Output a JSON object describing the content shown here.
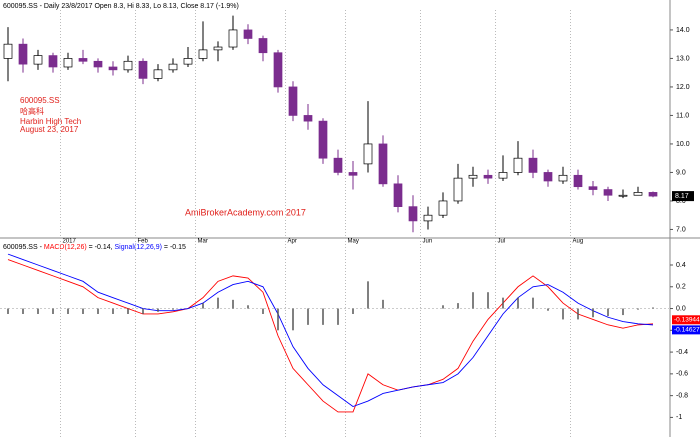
{
  "chart_data": [
    {
      "type": "candlestick",
      "title": "600095.SS - Daily 23/8/2017 Open 8.3, Hi 8.33, Lo 8.13, Close 8.17 (-1.9%)",
      "annotations": [
        "600095.SS",
        "哈高科",
        "Harbin High Tech",
        "August 23, 2017"
      ],
      "watermark": "AmiBrokerAcademy.com 2017",
      "categories": [
        null,
        null,
        null,
        null,
        "2017",
        null,
        null,
        null,
        null,
        "Feb",
        null,
        null,
        null,
        "Mar",
        null,
        null,
        null,
        null,
        null,
        "Apr",
        null,
        null,
        null,
        "May",
        null,
        null,
        null,
        null,
        "Jun",
        null,
        null,
        null,
        null,
        "Jul",
        null,
        null,
        null,
        null,
        "Aug",
        null,
        null,
        null,
        null,
        null
      ],
      "open": [
        13.0,
        13.5,
        12.8,
        13.1,
        12.7,
        13.0,
        12.9,
        12.7,
        12.6,
        12.9,
        12.3,
        12.6,
        12.8,
        13.0,
        13.3,
        13.4,
        14.0,
        13.7,
        13.2,
        12.0,
        11.0,
        10.8,
        9.5,
        9.0,
        9.3,
        10.0,
        8.6,
        7.8,
        7.3,
        7.5,
        8.0,
        8.8,
        8.9,
        8.8,
        9.0,
        9.5,
        9.0,
        8.7,
        8.9,
        8.5,
        8.4,
        8.2,
        8.2,
        8.3
      ],
      "high": [
        14.1,
        13.7,
        13.3,
        13.2,
        13.2,
        13.3,
        13.0,
        12.9,
        13.1,
        13.0,
        12.8,
        13.0,
        13.4,
        14.3,
        13.6,
        14.5,
        14.2,
        13.8,
        13.3,
        12.2,
        11.4,
        10.9,
        9.8,
        9.4,
        11.5,
        10.3,
        8.9,
        8.2,
        7.8,
        8.3,
        9.3,
        9.2,
        9.1,
        9.6,
        10.1,
        9.8,
        9.1,
        9.2,
        9.1,
        8.7,
        8.5,
        8.4,
        8.5,
        8.33
      ],
      "low": [
        12.2,
        12.5,
        12.6,
        12.5,
        12.6,
        12.8,
        12.5,
        12.4,
        12.5,
        12.1,
        12.2,
        12.5,
        12.7,
        12.9,
        12.9,
        13.3,
        13.5,
        12.9,
        11.8,
        10.8,
        10.5,
        9.3,
        8.9,
        8.4,
        9.0,
        8.5,
        7.6,
        6.9,
        7.0,
        7.4,
        7.9,
        8.5,
        8.6,
        8.7,
        8.9,
        8.8,
        8.5,
        8.6,
        8.4,
        8.2,
        8.0,
        8.1,
        8.2,
        8.13
      ],
      "close": [
        13.5,
        12.8,
        13.1,
        12.7,
        13.0,
        12.9,
        12.7,
        12.6,
        12.9,
        12.3,
        12.6,
        12.8,
        13.0,
        13.3,
        13.4,
        14.0,
        13.7,
        13.2,
        12.0,
        11.0,
        10.8,
        9.5,
        9.0,
        8.9,
        10.0,
        8.6,
        7.8,
        7.3,
        7.5,
        8.0,
        8.8,
        8.9,
        8.8,
        9.0,
        9.5,
        9.0,
        8.7,
        8.9,
        8.5,
        8.4,
        8.2,
        8.2,
        8.3,
        8.17
      ],
      "up_color": "#ffffff",
      "down_color": "#7b2d8e",
      "ylim": [
        6.7,
        15.05
      ],
      "yticks": [
        {
          "value": 7,
          "label": "7.0"
        },
        {
          "value": 8,
          "label": "8.0"
        },
        {
          "value": 9,
          "label": "9.0"
        },
        {
          "value": 10,
          "label": "10.0"
        },
        {
          "value": 11,
          "label": "11.0"
        },
        {
          "value": 12,
          "label": "12.0"
        },
        {
          "value": 13,
          "label": "13.0"
        },
        {
          "value": 14,
          "label": "14.0"
        }
      ]
    },
    {
      "type": "macd",
      "title": "600095.SS - ",
      "series": [
        {
          "name": "MACD(12,26)",
          "legend_value": " = -0.14, ",
          "last_label": "-0.139441",
          "color": "#ff0000",
          "values": [
            0.45,
            0.4,
            0.35,
            0.3,
            0.25,
            0.2,
            0.1,
            0.05,
            0.0,
            -0.05,
            -0.05,
            -0.03,
            0.0,
            0.1,
            0.25,
            0.3,
            0.28,
            0.15,
            -0.25,
            -0.55,
            -0.7,
            -0.85,
            -0.95,
            -0.95,
            -0.6,
            -0.7,
            -0.75,
            -0.72,
            -0.7,
            -0.65,
            -0.55,
            -0.3,
            -0.1,
            0.05,
            0.2,
            0.3,
            0.2,
            0.05,
            -0.05,
            -0.1,
            -0.15,
            -0.18,
            -0.15,
            -0.14
          ]
        },
        {
          "name": "Signal(12,26,9)",
          "legend_value": " = -0.15",
          "last_label": "-0.146271",
          "color": "#0000ff",
          "values": [
            0.5,
            0.45,
            0.4,
            0.35,
            0.3,
            0.25,
            0.15,
            0.1,
            0.05,
            0.0,
            -0.02,
            -0.02,
            0.0,
            0.05,
            0.15,
            0.22,
            0.25,
            0.2,
            -0.05,
            -0.35,
            -0.55,
            -0.7,
            -0.8,
            -0.9,
            -0.85,
            -0.78,
            -0.75,
            -0.72,
            -0.7,
            -0.68,
            -0.6,
            -0.45,
            -0.25,
            -0.05,
            0.1,
            0.2,
            0.22,
            0.15,
            0.05,
            -0.02,
            -0.08,
            -0.12,
            -0.14,
            -0.15
          ]
        },
        {
          "type": "bar",
          "color": "#555555",
          "values": [
            -0.05,
            -0.05,
            -0.05,
            -0.05,
            -0.05,
            -0.05,
            -0.05,
            -0.05,
            -0.05,
            -0.05,
            -0.03,
            -0.01,
            0.0,
            0.05,
            0.1,
            0.08,
            0.03,
            -0.05,
            -0.2,
            -0.2,
            -0.15,
            -0.15,
            -0.15,
            -0.05,
            0.25,
            0.08,
            0.0,
            0.0,
            0.0,
            0.03,
            0.05,
            0.15,
            0.15,
            0.1,
            0.1,
            0.1,
            -0.02,
            -0.1,
            -0.1,
            -0.08,
            -0.07,
            -0.06,
            -0.01,
            0.01
          ]
        }
      ],
      "ylim": [
        -1.18,
        0.648
      ],
      "yticks": [
        0.4,
        0.2,
        {
          "value": 0,
          "label": "0.0"
        },
        -0.2,
        -0.4,
        -0.6,
        -0.8,
        -1
      ]
    }
  ]
}
